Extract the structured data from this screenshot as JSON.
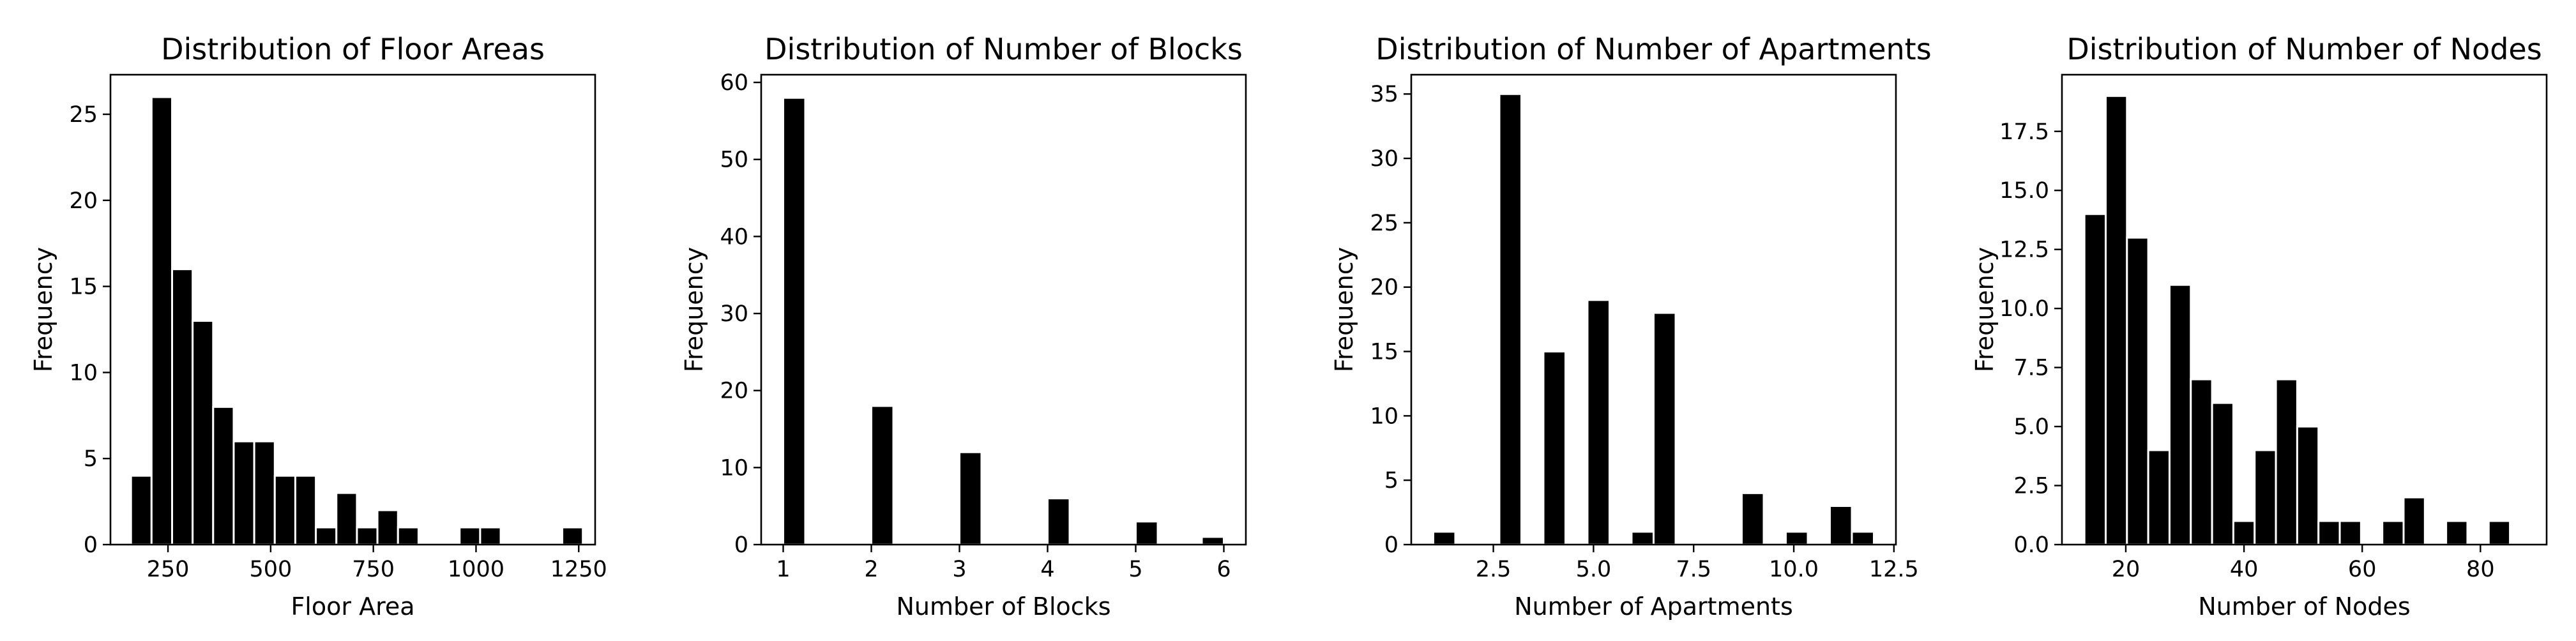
{
  "chart_data": [
    {
      "type": "bar",
      "title": "Distribution of Floor Areas",
      "xlabel": "Floor Area",
      "ylabel": "Frequency",
      "bar_color": "#000000",
      "edge_color": "#ffffff",
      "xlim": [
        110,
        1290
      ],
      "ylim": [
        0,
        27.3
      ],
      "xticks": [
        250,
        500,
        750,
        1000,
        1250
      ],
      "xtick_labels": [
        "250",
        "500",
        "750",
        "1000",
        "1250"
      ],
      "yticks": [
        0,
        5,
        10,
        15,
        20,
        25
      ],
      "ytick_labels": [
        "0",
        "5",
        "10",
        "15",
        "20",
        "25"
      ],
      "bins": [
        {
          "x0": 160,
          "x1": 210,
          "value": 4
        },
        {
          "x0": 210,
          "x1": 260,
          "value": 26
        },
        {
          "x0": 260,
          "x1": 310,
          "value": 16
        },
        {
          "x0": 310,
          "x1": 360,
          "value": 13
        },
        {
          "x0": 360,
          "x1": 410,
          "value": 8
        },
        {
          "x0": 410,
          "x1": 460,
          "value": 6
        },
        {
          "x0": 460,
          "x1": 510,
          "value": 6
        },
        {
          "x0": 510,
          "x1": 560,
          "value": 4
        },
        {
          "x0": 560,
          "x1": 610,
          "value": 4
        },
        {
          "x0": 610,
          "x1": 660,
          "value": 1
        },
        {
          "x0": 660,
          "x1": 710,
          "value": 3
        },
        {
          "x0": 710,
          "x1": 760,
          "value": 1
        },
        {
          "x0": 760,
          "x1": 810,
          "value": 2
        },
        {
          "x0": 810,
          "x1": 860,
          "value": 1
        },
        {
          "x0": 960,
          "x1": 1010,
          "value": 1
        },
        {
          "x0": 1010,
          "x1": 1060,
          "value": 1
        },
        {
          "x0": 1210,
          "x1": 1260,
          "value": 1
        }
      ]
    },
    {
      "type": "bar",
      "title": "Distribution of Number of Blocks",
      "xlabel": "Number of Blocks",
      "ylabel": "Frequency",
      "bar_color": "#000000",
      "edge_color": "#ffffff",
      "xlim": [
        0.75,
        6.25
      ],
      "ylim": [
        0,
        61
      ],
      "xticks": [
        1,
        2,
        3,
        4,
        5,
        6
      ],
      "xtick_labels": [
        "1",
        "2",
        "3",
        "4",
        "5",
        "6"
      ],
      "yticks": [
        0,
        10,
        20,
        30,
        40,
        50,
        60
      ],
      "ytick_labels": [
        "0",
        "10",
        "20",
        "30",
        "40",
        "50",
        "60"
      ],
      "bins": [
        {
          "x0": 1.0,
          "x1": 1.25,
          "value": 58
        },
        {
          "x0": 2.0,
          "x1": 2.25,
          "value": 18
        },
        {
          "x0": 3.0,
          "x1": 3.25,
          "value": 12
        },
        {
          "x0": 4.0,
          "x1": 4.25,
          "value": 6
        },
        {
          "x0": 5.0,
          "x1": 5.25,
          "value": 3
        },
        {
          "x0": 5.75,
          "x1": 6.0,
          "value": 1
        }
      ]
    },
    {
      "type": "bar",
      "title": "Distribution of Number of Apartments",
      "xlabel": "Number of Apartments",
      "ylabel": "Frequency",
      "bar_color": "#000000",
      "edge_color": "#ffffff",
      "xlim": [
        0.45,
        12.55
      ],
      "ylim": [
        0,
        36.5
      ],
      "xticks": [
        2.5,
        5.0,
        7.5,
        10.0,
        12.5
      ],
      "xtick_labels": [
        "2.5",
        "5.0",
        "7.5",
        "10.0",
        "12.5"
      ],
      "yticks": [
        0,
        5,
        10,
        15,
        20,
        25,
        30,
        35
      ],
      "ytick_labels": [
        "0",
        "5",
        "10",
        "15",
        "20",
        "25",
        "30",
        "35"
      ],
      "bins": [
        {
          "x0": 1.0,
          "x1": 1.55,
          "value": 1
        },
        {
          "x0": 2.65,
          "x1": 3.2,
          "value": 35
        },
        {
          "x0": 3.75,
          "x1": 4.3,
          "value": 15
        },
        {
          "x0": 4.85,
          "x1": 5.4,
          "value": 19
        },
        {
          "x0": 5.95,
          "x1": 6.5,
          "value": 1
        },
        {
          "x0": 6.5,
          "x1": 7.05,
          "value": 18
        },
        {
          "x0": 8.7,
          "x1": 9.25,
          "value": 4
        },
        {
          "x0": 9.8,
          "x1": 10.35,
          "value": 1
        },
        {
          "x0": 10.9,
          "x1": 11.45,
          "value": 3
        },
        {
          "x0": 11.45,
          "x1": 12.0,
          "value": 1
        }
      ]
    },
    {
      "type": "bar",
      "title": "Distribution of Number of Nodes",
      "xlabel": "Number of Nodes",
      "ylabel": "Frequency",
      "bar_color": "#000000",
      "edge_color": "#ffffff",
      "xlim": [
        9.2,
        91.2
      ],
      "ylim": [
        0,
        19.9
      ],
      "xticks": [
        20,
        40,
        60,
        80
      ],
      "xtick_labels": [
        "20",
        "40",
        "60",
        "80"
      ],
      "yticks": [
        0,
        2.5,
        5,
        7.5,
        10,
        12.5,
        15,
        17.5
      ],
      "ytick_labels": [
        "0.0",
        "2.5",
        "5.0",
        "7.5",
        "10.0",
        "12.5",
        "15.0",
        "17.5"
      ],
      "bins": [
        {
          "x0": 13.0,
          "x1": 16.6,
          "value": 14
        },
        {
          "x0": 16.6,
          "x1": 20.2,
          "value": 19
        },
        {
          "x0": 20.2,
          "x1": 23.8,
          "value": 13
        },
        {
          "x0": 23.8,
          "x1": 27.4,
          "value": 4
        },
        {
          "x0": 27.4,
          "x1": 31.0,
          "value": 11
        },
        {
          "x0": 31.0,
          "x1": 34.6,
          "value": 7
        },
        {
          "x0": 34.6,
          "x1": 38.2,
          "value": 6
        },
        {
          "x0": 38.2,
          "x1": 41.8,
          "value": 1
        },
        {
          "x0": 41.8,
          "x1": 45.4,
          "value": 4
        },
        {
          "x0": 45.4,
          "x1": 49.0,
          "value": 7
        },
        {
          "x0": 49.0,
          "x1": 52.6,
          "value": 5
        },
        {
          "x0": 52.6,
          "x1": 56.2,
          "value": 1
        },
        {
          "x0": 56.2,
          "x1": 59.8,
          "value": 1
        },
        {
          "x0": 63.4,
          "x1": 67.0,
          "value": 1
        },
        {
          "x0": 67.0,
          "x1": 70.6,
          "value": 2
        },
        {
          "x0": 74.2,
          "x1": 77.8,
          "value": 1
        },
        {
          "x0": 81.4,
          "x1": 85.0,
          "value": 1
        }
      ]
    }
  ]
}
